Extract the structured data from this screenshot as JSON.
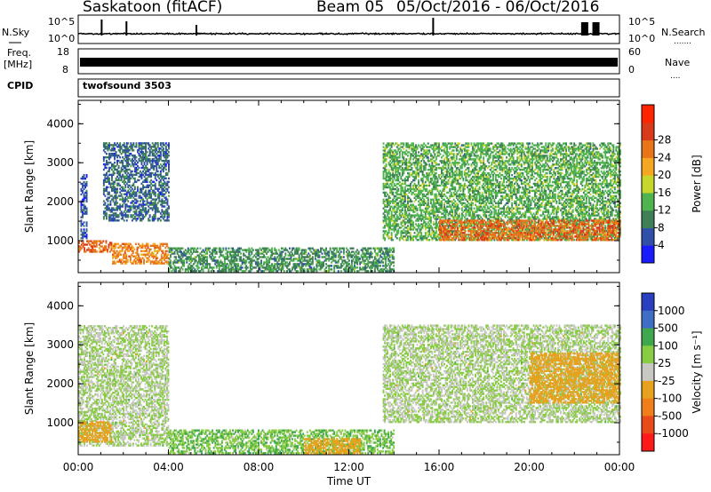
{
  "header": {
    "station": "Saskatoon (fitACF)",
    "beam": "Beam 05",
    "date_range": "05/Oct/2016 - 06/Oct/2016"
  },
  "params": {
    "nsky_label": "N.Sky",
    "nsearch_label": "N.Search",
    "noise_ticks": [
      "10^5",
      "10^0"
    ],
    "freq_label": "Freq.",
    "freq_unit": "[MHz]",
    "freq_ticks": [
      "18",
      "8"
    ],
    "nave_label": "Nave",
    "nave_ticks": [
      "60",
      "0"
    ],
    "cpid_label": "CPID",
    "cpid_value": "twofsound 3503"
  },
  "colors": {
    "power": [
      "#1a1aff",
      "#2f4fa8",
      "#3f7f56",
      "#4fb34f",
      "#c6d62a",
      "#f5a623",
      "#e8751a",
      "#d93b1a",
      "#ff2400"
    ],
    "velocity": [
      "#2a3fbf",
      "#3f6fc4",
      "#3fa84f",
      "#88cc44",
      "#c8c8c2",
      "#e6a21e",
      "#f07f1a",
      "#e84a1a",
      "#ff1a1a"
    ]
  },
  "chart_data": [
    {
      "type": "heatmap",
      "name": "power",
      "ylabel": "Slant Range [km]",
      "xlabel": "Time UT",
      "x_ticks": [
        "00:00",
        "04:00",
        "08:00",
        "12:00",
        "16:00",
        "20:00",
        "00:00"
      ],
      "x_range_hours": [
        0,
        24
      ],
      "y_ticks": [
        1000,
        2000,
        3000,
        4000
      ],
      "ylim": [
        180,
        4600
      ],
      "colorbar_label": "Power [dB]",
      "colorbar_ticks": [
        4,
        8,
        12,
        16,
        20,
        24,
        28
      ],
      "colorbar_range": [
        0,
        32
      ],
      "regions": [
        {
          "t": [
            0.1,
            0.4
          ],
          "r": [
            1000,
            2700
          ],
          "mean_db": 5
        },
        {
          "t": [
            0.0,
            1.5
          ],
          "r": [
            700,
            1000
          ],
          "mean_db": 24
        },
        {
          "t": [
            1.1,
            4.0
          ],
          "r": [
            1500,
            3500
          ],
          "mean_db": 7
        },
        {
          "t": [
            1.5,
            4.0
          ],
          "r": [
            400,
            900
          ],
          "mean_db": 22
        },
        {
          "t": [
            4.0,
            14.0
          ],
          "r": [
            200,
            800
          ],
          "mean_db": 10
        },
        {
          "t": [
            13.5,
            24.0
          ],
          "r": [
            1000,
            3500
          ],
          "mean_db": 12
        },
        {
          "t": [
            16.0,
            24.0
          ],
          "r": [
            1000,
            1500
          ],
          "mean_db": 24
        }
      ]
    },
    {
      "type": "heatmap",
      "name": "velocity",
      "ylabel": "Slant Range [km]",
      "xlabel": "Time UT",
      "x_ticks": [
        "00:00",
        "04:00",
        "08:00",
        "12:00",
        "16:00",
        "20:00",
        "00:00"
      ],
      "x_range_hours": [
        0,
        24
      ],
      "y_ticks": [
        1000,
        2000,
        3000,
        4000
      ],
      "ylim": [
        180,
        4600
      ],
      "colorbar_label": "Velocity [m s⁻¹]",
      "colorbar_ticks": [
        "1000",
        "500",
        "100",
        "25",
        "-25",
        "-100",
        "-500",
        "-1000"
      ],
      "regions": [
        {
          "t": [
            0.0,
            4.0
          ],
          "r": [
            400,
            3500
          ],
          "mean_ms": 0
        },
        {
          "t": [
            0.0,
            1.5
          ],
          "r": [
            500,
            1000
          ],
          "mean_ms": -150
        },
        {
          "t": [
            4.0,
            14.0
          ],
          "r": [
            200,
            800
          ],
          "mean_ms": 50
        },
        {
          "t": [
            10.0,
            12.5
          ],
          "r": [
            200,
            600
          ],
          "mean_ms": -150
        },
        {
          "t": [
            13.5,
            24.0
          ],
          "r": [
            1000,
            3500
          ],
          "mean_ms": 0
        },
        {
          "t": [
            20.0,
            24.0
          ],
          "r": [
            1500,
            2800
          ],
          "mean_ms": -150
        }
      ]
    }
  ]
}
